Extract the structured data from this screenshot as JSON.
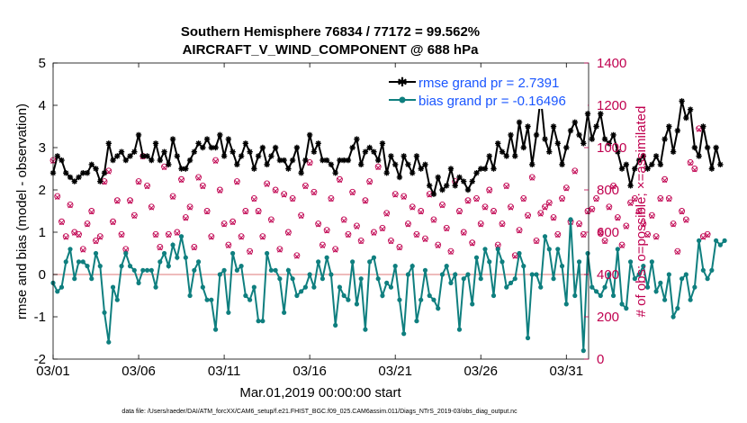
{
  "chart_data": {
    "type": "line",
    "title": "Southern Hemisphere 76834 / 77172 = 99.562%",
    "subtitle": "AIRCRAFT_V_WIND_COMPONENT @ 688 hPa",
    "xlabel": "Mar.01,2019 00:00:00 start",
    "ylabel": "rmse and bias (model - observation)",
    "ylabel_right": "# of obs: o=possible; ×=assimilated",
    "footer": "data file: /Users/raeder/DAI/ATM_forcXX/CAM6_setup/f.e21.FHIST_BGC.f09_025.CAM6assim.011/Diags_NTrS_2019-03/obs_diag_output.nc",
    "xlim": [
      1,
      32.3
    ],
    "ylim": [
      -2,
      5
    ],
    "ylim_right": [
      0,
      1400
    ],
    "x_ticks": [
      1,
      6,
      11,
      16,
      21,
      26,
      31
    ],
    "x_tick_labels": [
      "03/01",
      "03/06",
      "03/11",
      "03/16",
      "03/21",
      "03/26",
      "03/31"
    ],
    "y_ticks": [
      -2,
      -1,
      0,
      1,
      2,
      3,
      4,
      5
    ],
    "y_tick_labels": [
      "-2",
      "-1",
      "0",
      "1",
      "2",
      "3",
      "4",
      "5"
    ],
    "y_right_ticks": [
      0,
      200,
      400,
      600,
      800,
      1000,
      1200,
      1400
    ],
    "y_right_tick_labels": [
      "0",
      "200",
      "400",
      "600",
      "800",
      "1000",
      "1200",
      "1400"
    ],
    "time_step_days": 0.25,
    "series": [
      {
        "name": "rmse grand pr = 2.7391",
        "color": "#000000",
        "marker": "star",
        "values": [
          2.4,
          2.8,
          2.7,
          2.4,
          2.3,
          2.2,
          2.3,
          2.4,
          2.4,
          2.6,
          2.5,
          2.2,
          2.4,
          3.1,
          2.7,
          2.8,
          2.9,
          2.7,
          2.8,
          2.9,
          3.3,
          2.8,
          2.8,
          2.7,
          3.1,
          2.7,
          2.9,
          2.6,
          3.2,
          2.8,
          2.5,
          2.5,
          2.7,
          2.9,
          3.1,
          3.0,
          3.2,
          3.0,
          3.0,
          3.3,
          2.8,
          3.2,
          2.9,
          2.6,
          2.8,
          3.1,
          2.9,
          2.5,
          2.8,
          3.0,
          2.6,
          2.8,
          3.0,
          2.7,
          2.7,
          2.5,
          2.7,
          3.0,
          2.4,
          2.7,
          3.3,
          2.9,
          3.1,
          2.7,
          2.7,
          2.6,
          2.4,
          2.7,
          2.7,
          2.7,
          3.0,
          3.2,
          2.6,
          2.9,
          3.0,
          2.9,
          2.7,
          3.1,
          2.4,
          2.8,
          2.6,
          2.3,
          2.8,
          2.6,
          2.4,
          2.8,
          2.5,
          2.6,
          2.1,
          1.9,
          2.3,
          2.0,
          2.1,
          2.5,
          2.1,
          2.3,
          2.2,
          2.0,
          2.2,
          2.4,
          2.5,
          2.5,
          2.8,
          2.5,
          3.1,
          2.9,
          2.8,
          3.3,
          2.8,
          3.6,
          3.0,
          3.5,
          2.6,
          3.3,
          4.2,
          3.2,
          2.9,
          3.5,
          3.1,
          2.6,
          3.0,
          3.4,
          3.6,
          3.3,
          3.1,
          3.8,
          3.2,
          3.5,
          3.8,
          3.2,
          3.1,
          3.3,
          2.9,
          2.5,
          2.6,
          2.1,
          2.5,
          2.7,
          2.8,
          2.5,
          2.6,
          2.8,
          2.6,
          3.2,
          3.5,
          2.9,
          3.4,
          4.1,
          3.7,
          3.9,
          3.0,
          2.8,
          3.5,
          3.0,
          2.5,
          3.0,
          2.6
        ]
      },
      {
        "name": "bias grand pr = -0.16496",
        "color": "#0f7f7f",
        "marker": "circle",
        "values": [
          -0.2,
          -0.4,
          -0.3,
          0.3,
          0.6,
          -0.1,
          0.3,
          0.3,
          0.2,
          -0.1,
          0.5,
          0.2,
          -0.9,
          -1.6,
          -0.3,
          -0.6,
          0.2,
          0.5,
          0.2,
          0.1,
          -0.2,
          0.1,
          0.1,
          0.1,
          -0.3,
          0.3,
          0.5,
          0.2,
          0.7,
          0.4,
          0.9,
          0.4,
          -0.5,
          0.1,
          0.3,
          -0.3,
          -0.6,
          -0.6,
          -1.3,
          0.0,
          0.1,
          -0.9,
          0.5,
          0.1,
          0.2,
          -0.5,
          -0.6,
          -0.3,
          -1.1,
          -1.1,
          0.5,
          0.1,
          0.1,
          -0.1,
          -0.9,
          0.1,
          -0.1,
          -0.5,
          -0.4,
          -0.3,
          0.0,
          -0.3,
          0.3,
          -0.1,
          0.4,
          0.0,
          -1.2,
          -0.3,
          -0.5,
          -0.6,
          0.3,
          -0.7,
          -0.1,
          -1.3,
          0.3,
          0.4,
          -0.1,
          -0.5,
          -0.2,
          -0.3,
          0.2,
          -0.6,
          -1.4,
          0.0,
          0.2,
          -1.1,
          -0.6,
          0.1,
          -0.5,
          -0.6,
          -0.8,
          0.0,
          0.2,
          -0.2,
          0.0,
          -1.3,
          -0.1,
          0.0,
          -0.7,
          0.4,
          -0.1,
          0.6,
          0.3,
          -0.5,
          0.6,
          0.3,
          -0.3,
          -0.2,
          -0.1,
          0.5,
          0.2,
          -1.5,
          0.0,
          0.0,
          -0.3,
          0.9,
          0.6,
          -0.1,
          0.6,
          0.2,
          -0.7,
          1.3,
          -0.5,
          0.3,
          -1.8,
          0.5,
          -0.3,
          -0.4,
          -0.5,
          -0.3,
          0.0,
          -0.5,
          0.6,
          -0.7,
          -0.8,
          0.3,
          -0.1,
          0.0,
          0.2,
          -0.3,
          0.3,
          -0.4,
          -0.2,
          -0.6,
          0.0,
          -1.0,
          -0.8,
          -0.1,
          0.0,
          -0.6,
          -0.3,
          0.8,
          0.1,
          -0.1,
          0.1,
          0.8,
          0.7,
          0.8
        ]
      },
      {
        "name": "# of obs possible",
        "color": "#c0004f",
        "marker": "circle-open",
        "axis": "right",
        "values": [
          940,
          770,
          650,
          580,
          730,
          600,
          590,
          520,
          640,
          700,
          560,
          580,
          840,
          890,
          650,
          750,
          590,
          520,
          750,
          680,
          840,
          960,
          820,
          720,
          590,
          530,
          910,
          590,
          770,
          600,
          850,
          670,
          720,
          530,
          860,
          820,
          700,
          580,
          940,
          800,
          640,
          540,
          650,
          840,
          580,
          700,
          510,
          760,
          700,
          580,
          830,
          660,
          800,
          520,
          780,
          600,
          760,
          490,
          680,
          820,
          930,
          790,
          640,
          540,
          610,
          760,
          520,
          850,
          660,
          590,
          790,
          630,
          560,
          750,
          840,
          600,
          910,
          620,
          690,
          560,
          780,
          530,
          770,
          640,
          720,
          590,
          700,
          570,
          780,
          660,
          540,
          730,
          620,
          510,
          840,
          700,
          600,
          750,
          550,
          760,
          640,
          720,
          800,
          700,
          540,
          640,
          820,
          720,
          490,
          610,
          760,
          680,
          860,
          560,
          690,
          720,
          740,
          670,
          590,
          760,
          810,
          650,
          890,
          640,
          590,
          700,
          710,
          760,
          600,
          560,
          720,
          820,
          670,
          540,
          630,
          740,
          760,
          700,
          640,
          590,
          680,
          580,
          760,
          850,
          760,
          640,
          510,
          700,
          660,
          930,
          900,
          1090,
          580,
          590
        ]
      },
      {
        "name": "# of obs assimilated",
        "color": "#c0004f",
        "marker": "x",
        "axis": "right",
        "values": [
          935,
          765,
          645,
          575,
          725,
          595,
          585,
          515,
          635,
          695,
          555,
          575,
          835,
          885,
          645,
          745,
          585,
          515,
          745,
          675,
          835,
          955,
          815,
          715,
          585,
          525,
          905,
          585,
          765,
          595,
          845,
          665,
          715,
          525,
          855,
          815,
          695,
          575,
          935,
          795,
          635,
          535,
          645,
          835,
          575,
          695,
          505,
          755,
          695,
          575,
          825,
          655,
          795,
          515,
          775,
          595,
          755,
          485,
          675,
          815,
          925,
          785,
          635,
          535,
          605,
          755,
          515,
          845,
          655,
          585,
          785,
          625,
          555,
          745,
          835,
          595,
          905,
          615,
          685,
          555,
          775,
          525,
          765,
          635,
          715,
          585,
          695,
          565,
          775,
          655,
          535,
          725,
          615,
          505,
          835,
          695,
          595,
          745,
          545,
          755,
          635,
          715,
          795,
          695,
          535,
          635,
          815,
          715,
          485,
          605,
          755,
          675,
          855,
          555,
          685,
          715,
          735,
          665,
          585,
          755,
          805,
          645,
          885,
          635,
          585,
          695,
          705,
          755,
          595,
          555,
          715,
          815,
          665,
          535,
          625,
          735,
          755,
          695,
          635,
          585,
          675,
          575,
          755,
          845,
          755,
          635,
          505,
          695,
          655,
          925,
          895,
          1085,
          575,
          585
        ]
      }
    ]
  }
}
